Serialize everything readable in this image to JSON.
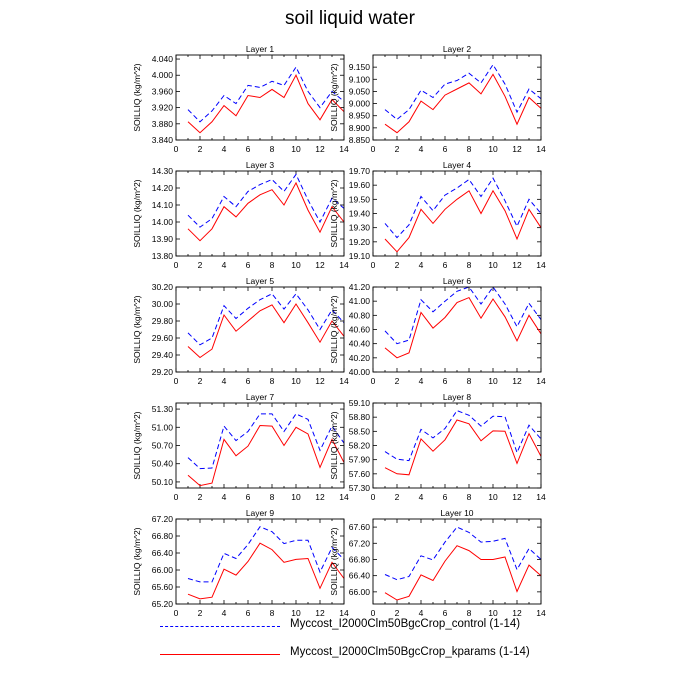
{
  "title": "soil liquid water",
  "colors": {
    "control": "#0000ff",
    "kparams": "#ff0000",
    "axis": "#000000"
  },
  "legend": [
    {
      "label": "Myccost_I2000Clm50BgcCrop_control (1-14)",
      "color": "#0000ff",
      "dash": "dashed"
    },
    {
      "label": "Myccost_I2000Clm50BgcCrop_kparams (1-14)",
      "color": "#ff0000",
      "dash": "solid"
    }
  ],
  "chart_data": [
    {
      "type": "line",
      "title": "Layer 1",
      "ylabel": "SOILLIQ  (kg/m^2)",
      "x": [
        1,
        2,
        3,
        4,
        5,
        6,
        7,
        8,
        9,
        10,
        11,
        12,
        13,
        14
      ],
      "xlim": [
        0,
        14
      ],
      "xticks": [
        0,
        2,
        4,
        6,
        8,
        10,
        12,
        14
      ],
      "ylim": [
        3.84,
        4.05
      ],
      "yticks": [
        "3.840",
        "3.880",
        "3.920",
        "3.960",
        "4.000",
        "4.040"
      ],
      "series": [
        {
          "name": "Myccost_I2000Clm50BgcCrop_control (1-14)",
          "values": [
            3.915,
            3.885,
            3.912,
            3.95,
            3.93,
            3.975,
            3.97,
            3.985,
            3.975,
            4.02,
            3.96,
            3.92,
            3.96,
            3.935
          ]
        },
        {
          "name": "Myccost_I2000Clm50BgcCrop_kparams (1-14)",
          "values": [
            3.885,
            3.858,
            3.885,
            3.925,
            3.9,
            3.95,
            3.945,
            3.965,
            3.945,
            4.0,
            3.93,
            3.89,
            3.94,
            3.91
          ]
        }
      ]
    },
    {
      "type": "line",
      "title": "Layer 2",
      "ylabel": "SOILLIQ  (kg/m^2)",
      "x": [
        1,
        2,
        3,
        4,
        5,
        6,
        7,
        8,
        9,
        10,
        11,
        12,
        13,
        14
      ],
      "xlim": [
        0,
        14
      ],
      "xticks": [
        0,
        2,
        4,
        6,
        8,
        10,
        12,
        14
      ],
      "ylim": [
        8.85,
        9.2
      ],
      "yticks": [
        "8.850",
        "8.900",
        "8.950",
        "9.000",
        "9.050",
        "9.100",
        "9.150"
      ],
      "series": [
        {
          "name": "Myccost_I2000Clm50BgcCrop_control (1-14)",
          "values": [
            8.975,
            8.935,
            8.975,
            9.055,
            9.025,
            9.08,
            9.095,
            9.125,
            9.085,
            9.16,
            9.08,
            8.965,
            9.06,
            9.02
          ]
        },
        {
          "name": "Myccost_I2000Clm50BgcCrop_kparams (1-14)",
          "values": [
            8.915,
            8.88,
            8.925,
            9.01,
            8.975,
            9.035,
            9.06,
            9.085,
            9.04,
            9.12,
            9.03,
            8.915,
            9.025,
            8.98
          ]
        }
      ]
    },
    {
      "type": "line",
      "title": "Layer 3",
      "ylabel": "SOILLIQ  (kg/m^2)",
      "x": [
        1,
        2,
        3,
        4,
        5,
        6,
        7,
        8,
        9,
        10,
        11,
        12,
        13,
        14
      ],
      "xlim": [
        0,
        14
      ],
      "xticks": [
        0,
        2,
        4,
        6,
        8,
        10,
        12,
        14
      ],
      "ylim": [
        13.8,
        14.3
      ],
      "yticks": [
        "13.80",
        "13.90",
        "14.00",
        "14.10",
        "14.20",
        "14.30"
      ],
      "series": [
        {
          "name": "Myccost_I2000Clm50BgcCrop_control (1-14)",
          "values": [
            14.04,
            13.97,
            14.02,
            14.15,
            14.09,
            14.18,
            14.22,
            14.25,
            14.18,
            14.28,
            14.13,
            14.0,
            14.14,
            14.08
          ]
        },
        {
          "name": "Myccost_I2000Clm50BgcCrop_kparams (1-14)",
          "values": [
            13.96,
            13.89,
            13.96,
            14.09,
            14.03,
            14.11,
            14.16,
            14.19,
            14.1,
            14.23,
            14.07,
            13.94,
            14.09,
            14.0
          ]
        }
      ]
    },
    {
      "type": "line",
      "title": "Layer 4",
      "ylabel": "SOILLIQ  (kg/m^2)",
      "x": [
        1,
        2,
        3,
        4,
        5,
        6,
        7,
        8,
        9,
        10,
        11,
        12,
        13,
        14
      ],
      "xlim": [
        0,
        14
      ],
      "xticks": [
        0,
        2,
        4,
        6,
        8,
        10,
        12,
        14
      ],
      "ylim": [
        19.1,
        19.7
      ],
      "yticks": [
        "19.10",
        "19.20",
        "19.30",
        "19.40",
        "19.50",
        "19.60",
        "19.70"
      ],
      "series": [
        {
          "name": "Myccost_I2000Clm50BgcCrop_control (1-14)",
          "values": [
            19.33,
            19.23,
            19.32,
            19.52,
            19.42,
            19.53,
            19.58,
            19.64,
            19.52,
            19.65,
            19.49,
            19.31,
            19.5,
            19.4
          ]
        },
        {
          "name": "Myccost_I2000Clm50BgcCrop_kparams (1-14)",
          "values": [
            19.22,
            19.13,
            19.23,
            19.43,
            19.33,
            19.43,
            19.5,
            19.56,
            19.4,
            19.56,
            19.42,
            19.22,
            19.43,
            19.3
          ]
        }
      ]
    },
    {
      "type": "line",
      "title": "Layer 5",
      "ylabel": "SOILLIQ  (kg/m^2)",
      "x": [
        1,
        2,
        3,
        4,
        5,
        6,
        7,
        8,
        9,
        10,
        11,
        12,
        13,
        14
      ],
      "xlim": [
        0,
        14
      ],
      "xticks": [
        0,
        2,
        4,
        6,
        8,
        10,
        12,
        14
      ],
      "ylim": [
        29.2,
        30.2
      ],
      "yticks": [
        "29.20",
        "29.40",
        "29.60",
        "29.80",
        "30.00",
        "30.20"
      ],
      "series": [
        {
          "name": "Myccost_I2000Clm50BgcCrop_control (1-14)",
          "values": [
            29.66,
            29.52,
            29.6,
            29.98,
            29.83,
            29.95,
            30.05,
            30.12,
            29.94,
            30.12,
            29.93,
            29.7,
            29.93,
            29.78
          ]
        },
        {
          "name": "Myccost_I2000Clm50BgcCrop_kparams (1-14)",
          "values": [
            29.5,
            29.37,
            29.47,
            29.87,
            29.68,
            29.8,
            29.92,
            29.99,
            29.78,
            30.0,
            29.78,
            29.55,
            29.8,
            29.62
          ]
        }
      ]
    },
    {
      "type": "line",
      "title": "Layer 6",
      "ylabel": "SOILLIQ  (kg/m^2)",
      "x": [
        1,
        2,
        3,
        4,
        5,
        6,
        7,
        8,
        9,
        10,
        11,
        12,
        13,
        14
      ],
      "xlim": [
        0,
        14
      ],
      "xticks": [
        0,
        2,
        4,
        6,
        8,
        10,
        12,
        14
      ],
      "ylim": [
        40.0,
        41.2
      ],
      "yticks": [
        "40.00",
        "40.20",
        "40.40",
        "40.60",
        "40.80",
        "41.00",
        "41.20"
      ],
      "series": [
        {
          "name": "Myccost_I2000Clm50BgcCrop_control (1-14)",
          "values": [
            40.58,
            40.4,
            40.45,
            41.02,
            40.85,
            41.0,
            41.14,
            41.2,
            40.96,
            41.2,
            40.96,
            40.64,
            40.97,
            40.74
          ]
        },
        {
          "name": "Myccost_I2000Clm50BgcCrop_kparams (1-14)",
          "values": [
            40.34,
            40.2,
            40.27,
            40.84,
            40.62,
            40.77,
            40.98,
            41.05,
            40.76,
            41.03,
            40.78,
            40.44,
            40.8,
            40.54
          ]
        }
      ]
    },
    {
      "type": "line",
      "title": "Layer 7",
      "ylabel": "SOILLIQ  (kg/m^2)",
      "x": [
        1,
        2,
        3,
        4,
        5,
        6,
        7,
        8,
        9,
        10,
        11,
        12,
        13,
        14
      ],
      "xlim": [
        0,
        14
      ],
      "xticks": [
        0,
        2,
        4,
        6,
        8,
        10,
        12,
        14
      ],
      "ylim": [
        50.0,
        51.4
      ],
      "yticks": [
        "50.10",
        "50.40",
        "50.70",
        "51.00",
        "51.30"
      ],
      "series": [
        {
          "name": "Myccost_I2000Clm50BgcCrop_control (1-14)",
          "values": [
            50.5,
            50.32,
            50.33,
            51.02,
            50.78,
            50.93,
            51.22,
            51.22,
            50.93,
            51.22,
            51.13,
            50.62,
            51.02,
            50.74
          ]
        },
        {
          "name": "Myccost_I2000Clm50BgcCrop_kparams (1-14)",
          "values": [
            50.21,
            50.04,
            50.08,
            50.8,
            50.53,
            50.69,
            51.03,
            51.02,
            50.7,
            51.0,
            50.89,
            50.34,
            50.8,
            50.42
          ]
        }
      ]
    },
    {
      "type": "line",
      "title": "Layer 8",
      "ylabel": "SOILLIQ  (kg/m^2)",
      "x": [
        1,
        2,
        3,
        4,
        5,
        6,
        7,
        8,
        9,
        10,
        11,
        12,
        13,
        14
      ],
      "xlim": [
        0,
        14
      ],
      "xticks": [
        0,
        2,
        4,
        6,
        8,
        10,
        12,
        14
      ],
      "ylim": [
        57.3,
        59.1
      ],
      "yticks": [
        "57.30",
        "57.60",
        "57.90",
        "58.20",
        "58.50",
        "58.80",
        "59.10"
      ],
      "series": [
        {
          "name": "Myccost_I2000Clm50BgcCrop_control (1-14)",
          "values": [
            58.07,
            57.91,
            57.88,
            58.54,
            58.36,
            58.56,
            58.94,
            58.84,
            58.61,
            58.82,
            58.81,
            58.05,
            58.63,
            58.34
          ]
        },
        {
          "name": "Myccost_I2000Clm50BgcCrop_kparams (1-14)",
          "values": [
            57.73,
            57.6,
            57.58,
            58.34,
            58.08,
            58.32,
            58.74,
            58.66,
            58.3,
            58.51,
            58.5,
            57.82,
            58.45,
            57.97
          ]
        }
      ]
    },
    {
      "type": "line",
      "title": "Layer 9",
      "ylabel": "SOILLIQ  (kg/m^2)",
      "x": [
        1,
        2,
        3,
        4,
        5,
        6,
        7,
        8,
        9,
        10,
        11,
        12,
        13,
        14
      ],
      "xlim": [
        0,
        14
      ],
      "xticks": [
        0,
        2,
        4,
        6,
        8,
        10,
        12,
        14
      ],
      "ylim": [
        65.2,
        67.2
      ],
      "yticks": [
        "65.20",
        "65.60",
        "66.00",
        "66.40",
        "66.80",
        "67.20"
      ],
      "series": [
        {
          "name": "Myccost_I2000Clm50BgcCrop_control (1-14)",
          "values": [
            65.8,
            65.72,
            65.72,
            66.39,
            66.27,
            66.6,
            67.02,
            66.9,
            66.62,
            66.7,
            66.7,
            65.95,
            66.53,
            66.25
          ]
        },
        {
          "name": "Myccost_I2000Clm50BgcCrop_kparams (1-14)",
          "values": [
            65.43,
            65.32,
            65.36,
            66.02,
            65.88,
            66.2,
            66.63,
            66.48,
            66.18,
            66.25,
            66.27,
            65.57,
            66.18,
            65.8
          ]
        }
      ]
    },
    {
      "type": "line",
      "title": "Layer 10",
      "ylabel": "SOILLIQ  (kg/m^2)",
      "x": [
        1,
        2,
        3,
        4,
        5,
        6,
        7,
        8,
        9,
        10,
        11,
        12,
        13,
        14
      ],
      "xlim": [
        0,
        14
      ],
      "xticks": [
        0,
        2,
        4,
        6,
        8,
        10,
        12,
        14
      ],
      "ylim": [
        65.7,
        67.8
      ],
      "yticks": [
        "66.00",
        "66.40",
        "66.80",
        "67.20",
        "67.60"
      ],
      "series": [
        {
          "name": "Myccost_I2000Clm50BgcCrop_control (1-14)",
          "values": [
            66.43,
            66.3,
            66.38,
            66.89,
            66.79,
            67.23,
            67.6,
            67.47,
            67.23,
            67.25,
            67.32,
            66.55,
            67.07,
            66.8
          ]
        },
        {
          "name": "Myccost_I2000Clm50BgcCrop_kparams (1-14)",
          "values": [
            65.98,
            65.8,
            65.89,
            66.42,
            66.28,
            66.76,
            67.14,
            67.02,
            66.8,
            66.8,
            66.86,
            66.01,
            66.66,
            66.4
          ]
        }
      ]
    }
  ]
}
